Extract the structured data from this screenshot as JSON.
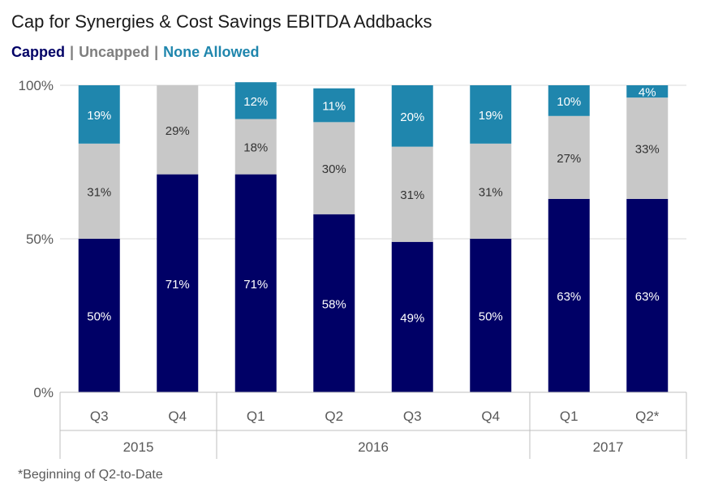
{
  "chart_data": {
    "type": "bar",
    "stacked": true,
    "title": "Cap for Synergies & Cost Savings EBITDA Addbacks",
    "categories": [
      "Q3",
      "Q4",
      "Q1",
      "Q2",
      "Q3",
      "Q4",
      "Q1",
      "Q2*"
    ],
    "groups": [
      {
        "label": "2015",
        "count": 2
      },
      {
        "label": "2016",
        "count": 4
      },
      {
        "label": "2017",
        "count": 2
      }
    ],
    "series": [
      {
        "name": "Capped",
        "color": "#000066",
        "label_color": "#ffffff",
        "values": [
          50,
          71,
          71,
          58,
          49,
          50,
          63,
          63
        ]
      },
      {
        "name": "Uncapped",
        "color": "#c8c8c8",
        "label_color": "#333333",
        "values": [
          31,
          29,
          18,
          30,
          31,
          31,
          27,
          33
        ]
      },
      {
        "name": "None Allowed",
        "color": "#1f86ad",
        "label_color": "#ffffff",
        "values": [
          19,
          0,
          12,
          11,
          20,
          19,
          10,
          4
        ]
      }
    ],
    "ylim": [
      0,
      100
    ],
    "yticks": [
      0,
      50,
      100
    ],
    "ytick_labels": [
      "0%",
      "50%",
      "100%"
    ],
    "legend_position": "top-left",
    "legend_separator": "|",
    "grid": true,
    "footnote": "*Beginning of Q2-to-Date"
  }
}
